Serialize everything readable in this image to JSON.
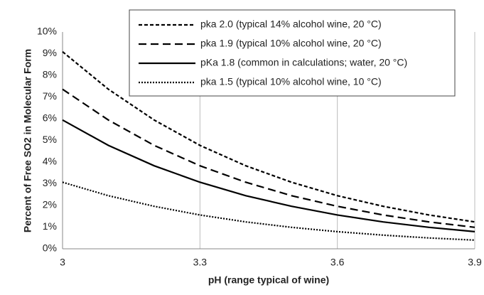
{
  "chart_data": {
    "type": "line",
    "xlabel": "pH  (range typical of wine)",
    "ylabel": "Percent of Free SO2 in Molecular Form",
    "x": [
      3.0,
      3.1,
      3.2,
      3.3,
      3.4,
      3.5,
      3.6,
      3.7,
      3.8,
      3.9
    ],
    "series": [
      {
        "name": "pka 2.0 (typical 14% alcohol wine, 20 °C)",
        "color": "#000000",
        "dash": "5,3",
        "values": [
          9.09,
          7.36,
          5.94,
          4.77,
          3.83,
          3.07,
          2.45,
          1.96,
          1.56,
          1.24
        ]
      },
      {
        "name": "pka 1.9 (typical 10% alcohol wine, 20 °C)",
        "color": "#000000",
        "dash": "11,6",
        "values": [
          7.36,
          5.94,
          4.77,
          3.83,
          3.07,
          2.45,
          1.96,
          1.56,
          1.24,
          0.99
        ]
      },
      {
        "name": "pKa 1.8 (common in calculations; water, 20 °C)",
        "color": "#000000",
        "dash": "none",
        "values": [
          5.94,
          4.77,
          3.83,
          3.07,
          2.45,
          1.96,
          1.56,
          1.24,
          0.99,
          0.79
        ]
      },
      {
        "name": "pka 1.5 (typical 10% alcohol wine, 10 °C)",
        "color": "#000000",
        "dash": "2,2",
        "values": [
          3.07,
          2.45,
          1.96,
          1.56,
          1.24,
          0.99,
          0.79,
          0.63,
          0.5,
          0.4
        ]
      }
    ],
    "xlim": [
      3,
      3.9
    ],
    "xticks": [
      3,
      3.3,
      3.6,
      3.9
    ],
    "ylim": [
      0,
      10
    ],
    "yticks": [
      {
        "value": 0,
        "label": "0%"
      },
      {
        "value": 1,
        "label": "1%"
      },
      {
        "value": 2,
        "label": "2%"
      },
      {
        "value": 3,
        "label": "3%"
      },
      {
        "value": 4,
        "label": "4%"
      },
      {
        "value": 5,
        "label": "5%"
      },
      {
        "value": 6,
        "label": "6%"
      },
      {
        "value": 7,
        "label": "7%"
      },
      {
        "value": 8,
        "label": "8%"
      },
      {
        "value": 9,
        "label": "9%"
      },
      {
        "value": 10,
        "label": "10%"
      }
    ],
    "grid": "x",
    "legend": "top-right"
  }
}
